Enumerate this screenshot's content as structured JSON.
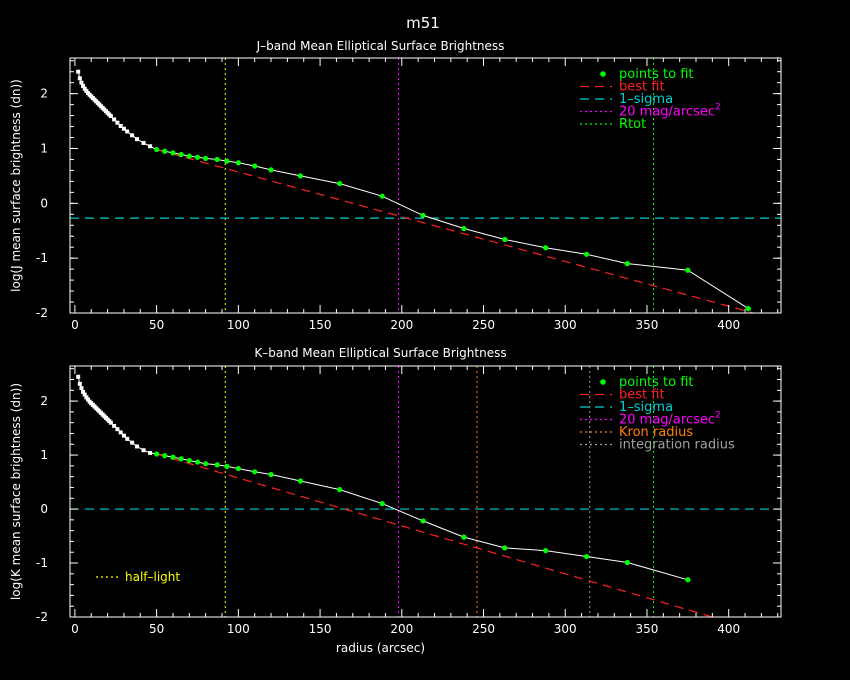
{
  "title": "m51",
  "colors": {
    "background": "#000000",
    "axes": "#ffffff",
    "profile": "#ffffff",
    "fit_points": "#00ff00",
    "best_fit": "#ff2020",
    "one_sigma": "#00d0d0",
    "mag20": "#ff00ff",
    "rtot": "#00ff00",
    "kron": "#ff8000",
    "integration": "#a0a0a0",
    "half_light": "#ffff00"
  },
  "chart_data": [
    {
      "type": "scatter",
      "title": "J–band Mean Elliptical Surface Brightness",
      "xlabel": "",
      "ylabel": "log(J mean surface brightness (dn))",
      "xlim": [
        -3,
        432
      ],
      "ylim": [
        -2,
        2.65
      ],
      "xticks": [
        0,
        50,
        100,
        150,
        200,
        250,
        300,
        350,
        400
      ],
      "yticks": [
        -2,
        -1,
        0,
        1,
        2
      ],
      "legend": [
        {
          "key": "fit_points",
          "label": "points to fit",
          "style": "dot"
        },
        {
          "key": "best_fit",
          "label": "best fit",
          "style": "dash"
        },
        {
          "key": "one_sigma",
          "label": "1–sigma",
          "style": "dash"
        },
        {
          "key": "mag20",
          "label": "20 mag/arcsec",
          "sup": "2",
          "style": "dot-line"
        },
        {
          "key": "rtot",
          "label": "Rtot",
          "style": "dot-line"
        }
      ],
      "profile": {
        "x": [
          2,
          3,
          4,
          5,
          6,
          7,
          8,
          9,
          10,
          11,
          12,
          13,
          14,
          15,
          16,
          17,
          18,
          19,
          20,
          21,
          22,
          24,
          26,
          28,
          30,
          32,
          35,
          38,
          42,
          46,
          50,
          55,
          60,
          65,
          70,
          75,
          80,
          87,
          93,
          100,
          110,
          120,
          138,
          162,
          188,
          213,
          238,
          263,
          288,
          313,
          338,
          375,
          412
        ],
        "y": [
          2.4,
          2.28,
          2.2,
          2.14,
          2.09,
          2.05,
          2.01,
          1.98,
          1.95,
          1.92,
          1.89,
          1.86,
          1.83,
          1.8,
          1.77,
          1.74,
          1.71,
          1.68,
          1.65,
          1.62,
          1.59,
          1.53,
          1.47,
          1.41,
          1.36,
          1.31,
          1.24,
          1.17,
          1.1,
          1.04,
          0.98,
          0.95,
          0.92,
          0.89,
          0.86,
          0.84,
          0.82,
          0.8,
          0.77,
          0.74,
          0.68,
          0.61,
          0.5,
          0.36,
          0.13,
          -0.22,
          -0.46,
          -0.66,
          -0.81,
          -0.93,
          -1.1,
          -1.22,
          -1.92
        ]
      },
      "fit_points": {
        "x": [
          50,
          55,
          60,
          65,
          70,
          75,
          80,
          87,
          93,
          100,
          110,
          120,
          138,
          162,
          188,
          213,
          238,
          263,
          288,
          313,
          338,
          375,
          412
        ],
        "y": [
          0.98,
          0.95,
          0.92,
          0.89,
          0.86,
          0.84,
          0.82,
          0.8,
          0.77,
          0.74,
          0.68,
          0.61,
          0.5,
          0.36,
          0.13,
          -0.22,
          -0.46,
          -0.66,
          -0.81,
          -0.93,
          -1.1,
          -1.22,
          -1.92
        ]
      },
      "best_fit": {
        "x0": 50,
        "y0": 0.98,
        "x1": 415,
        "y1": -2.0
      },
      "one_sigma": -0.27,
      "vlines": [
        {
          "key": "half_light",
          "x": 92
        },
        {
          "key": "mag20",
          "x": 198
        },
        {
          "key": "rtot",
          "x": 354
        }
      ]
    },
    {
      "type": "scatter",
      "title": "K–band Mean Elliptical Surface Brightness",
      "xlabel": "radius (arcsec)",
      "ylabel": "log(K mean surface brightness (dn))",
      "xlim": [
        -3,
        432
      ],
      "ylim": [
        -2,
        2.65
      ],
      "xticks": [
        0,
        50,
        100,
        150,
        200,
        250,
        300,
        350,
        400
      ],
      "yticks": [
        -2,
        -1,
        0,
        1,
        2
      ],
      "legend": [
        {
          "key": "fit_points",
          "label": "points to fit",
          "style": "dot"
        },
        {
          "key": "best_fit",
          "label": "best fit",
          "style": "dash"
        },
        {
          "key": "one_sigma",
          "label": "1–sigma",
          "style": "dash"
        },
        {
          "key": "mag20",
          "label": "20 mag/arcsec",
          "sup": "2",
          "style": "dot-line"
        },
        {
          "key": "kron",
          "label": "Kron radius",
          "style": "dot-line"
        },
        {
          "key": "integration",
          "label": "integration radius",
          "style": "dot-line"
        }
      ],
      "half_light_label": "half–light",
      "profile": {
        "x": [
          2,
          3,
          4,
          5,
          6,
          7,
          8,
          9,
          10,
          11,
          12,
          13,
          14,
          15,
          16,
          17,
          18,
          19,
          20,
          21,
          22,
          24,
          26,
          28,
          30,
          32,
          35,
          38,
          42,
          46,
          50,
          55,
          60,
          65,
          70,
          75,
          80,
          87,
          93,
          100,
          110,
          120,
          138,
          162,
          188,
          213,
          238,
          263,
          288,
          313,
          338,
          375
        ],
        "y": [
          2.45,
          2.32,
          2.24,
          2.17,
          2.12,
          2.07,
          2.03,
          1.99,
          1.96,
          1.93,
          1.9,
          1.87,
          1.84,
          1.81,
          1.78,
          1.75,
          1.72,
          1.69,
          1.66,
          1.63,
          1.6,
          1.54,
          1.48,
          1.42,
          1.36,
          1.3,
          1.23,
          1.16,
          1.09,
          1.04,
          1.02,
          0.99,
          0.96,
          0.93,
          0.9,
          0.87,
          0.84,
          0.82,
          0.79,
          0.75,
          0.69,
          0.64,
          0.52,
          0.36,
          0.1,
          -0.22,
          -0.52,
          -0.72,
          -0.77,
          -0.88,
          -0.99,
          -1.31
        ]
      },
      "fit_points": {
        "x": [
          50,
          55,
          60,
          65,
          70,
          75,
          80,
          87,
          93,
          100,
          110,
          120,
          138,
          162,
          188,
          213,
          238,
          263,
          288,
          313,
          338,
          375
        ],
        "y": [
          1.02,
          0.99,
          0.96,
          0.93,
          0.9,
          0.87,
          0.84,
          0.82,
          0.79,
          0.75,
          0.69,
          0.64,
          0.52,
          0.36,
          0.1,
          -0.22,
          -0.52,
          -0.72,
          -0.77,
          -0.88,
          -0.99,
          -1.31
        ]
      },
      "best_fit": {
        "x0": 50,
        "y0": 1.02,
        "x1": 390,
        "y1": -2.0
      },
      "one_sigma": 0.0,
      "vlines": [
        {
          "key": "half_light",
          "x": 92
        },
        {
          "key": "mag20",
          "x": 198
        },
        {
          "key": "kron",
          "x": 246
        },
        {
          "key": "integration",
          "x": 315
        },
        {
          "key": "rtot",
          "x": 354
        }
      ]
    }
  ]
}
